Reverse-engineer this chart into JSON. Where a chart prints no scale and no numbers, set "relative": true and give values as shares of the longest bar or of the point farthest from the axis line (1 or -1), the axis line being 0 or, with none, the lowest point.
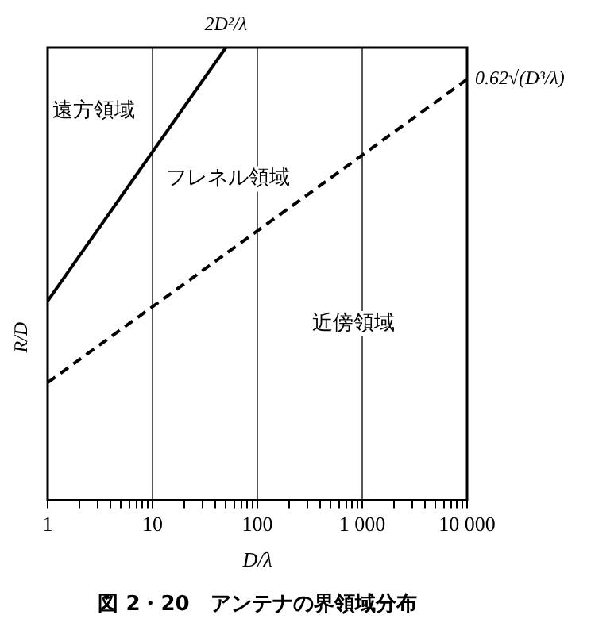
{
  "chart_data": {
    "type": "line",
    "title": "図 2・20　アンテナの界領域分布",
    "xlabel": "D/λ",
    "ylabel": "R/D",
    "relative": true,
    "log": "x",
    "xlim": [
      1,
      10000
    ],
    "xticks": [
      1,
      {
        "value": 2,
        "label": null
      },
      {
        "value": 3,
        "label": null
      },
      {
        "value": 4,
        "label": null
      },
      {
        "value": 5,
        "label": null
      },
      {
        "value": 6,
        "label": null
      },
      {
        "value": 7,
        "label": null
      },
      {
        "value": 8,
        "label": null
      },
      {
        "value": 9,
        "label": null
      },
      10,
      {
        "value": 20,
        "label": null
      },
      {
        "value": 30,
        "label": null
      },
      {
        "value": 40,
        "label": null
      },
      {
        "value": 50,
        "label": null
      },
      {
        "value": 60,
        "label": null
      },
      {
        "value": 70,
        "label": null
      },
      {
        "value": 80,
        "label": null
      },
      {
        "value": 90,
        "label": null
      },
      100,
      {
        "value": 200,
        "label": null
      },
      {
        "value": 300,
        "label": null
      },
      {
        "value": 400,
        "label": null
      },
      {
        "value": 500,
        "label": null
      },
      {
        "value": 600,
        "label": null
      },
      {
        "value": 700,
        "label": null
      },
      {
        "value": 800,
        "label": null
      },
      {
        "value": 900,
        "label": null
      },
      {
        "value": 1000,
        "label": "1 000"
      },
      {
        "value": 2000,
        "label": null
      },
      {
        "value": 3000,
        "label": null
      },
      {
        "value": 4000,
        "label": null
      },
      {
        "value": 5000,
        "label": null
      },
      {
        "value": 6000,
        "label": null
      },
      {
        "value": 7000,
        "label": null
      },
      {
        "value": 8000,
        "label": null
      },
      {
        "value": 9000,
        "label": null
      },
      {
        "value": 10000,
        "label": "10 000"
      }
    ],
    "grid": "x",
    "legend": false,
    "series": [
      {
        "color": "#000000",
        "x": [
          1,
          50
        ],
        "values": [
          0.44,
          1
        ],
        "line_style": "solid"
      },
      {
        "color": "#000000",
        "x": [
          1,
          10000
        ],
        "values": [
          0.26,
          0.93
        ],
        "line_style": "dashed"
      }
    ],
    "annotations": [
      {
        "text": "2D²/λ",
        "x": 50,
        "y": 1
      },
      {
        "text": "0.62√(D³/λ)",
        "x": 10000,
        "y": 0.93
      },
      "遠方領域",
      "フレネル領域",
      "近傍領域"
    ]
  }
}
